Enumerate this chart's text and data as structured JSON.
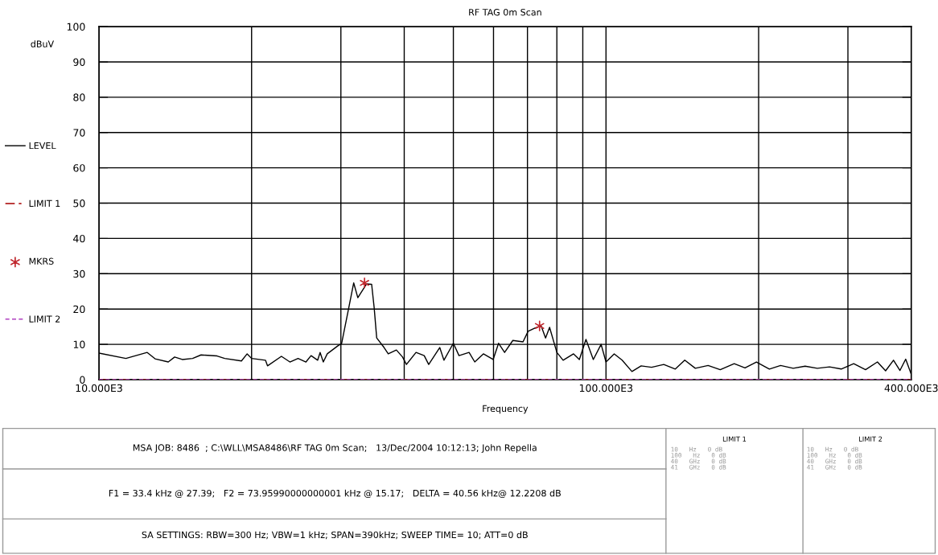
{
  "chart_data": {
    "type": "line",
    "title": "RF TAG 0m Scan",
    "xlabel": "Frequency",
    "ylabel": "dBuV",
    "log": "x",
    "xlim": [
      10000,
      400000
    ],
    "ylim": [
      0,
      100
    ],
    "xticks": [
      {
        "value": 10000,
        "label": "10.000E3"
      },
      {
        "value": 20000,
        "label": null
      },
      {
        "value": 30000,
        "label": null
      },
      {
        "value": 40000,
        "label": null
      },
      {
        "value": 50000,
        "label": null
      },
      {
        "value": 60000,
        "label": null
      },
      {
        "value": 70000,
        "label": null
      },
      {
        "value": 80000,
        "label": null
      },
      {
        "value": 90000,
        "label": null
      },
      {
        "value": 100000,
        "label": "100.000E3"
      },
      {
        "value": 200000,
        "label": null
      },
      {
        "value": 300000,
        "label": null
      },
      {
        "value": 400000,
        "label": "400.000E3"
      }
    ],
    "yticks": [
      0,
      10,
      20,
      30,
      40,
      50,
      60,
      70,
      80,
      90,
      100
    ],
    "grid": true,
    "legend": "left",
    "series": [
      {
        "name": "LEVEL",
        "type": "line",
        "color": "#000000",
        "line_style": "solid",
        "marker": "none",
        "x": [
          10000,
          11300,
          12450,
          12900,
          13700,
          14100,
          14600,
          15300,
          15900,
          17100,
          17700,
          19100,
          19600,
          20000,
          21300,
          21500,
          22900,
          23800,
          24700,
          25600,
          26200,
          27000,
          27300,
          27700,
          28200,
          29600,
          30100,
          31000,
          31800,
          32400,
          33700,
          34500,
          34900,
          35300,
          36500,
          37200,
          38600,
          39700,
          40400,
          42200,
          43800,
          44700,
          47000,
          47900,
          50000,
          51300,
          53700,
          55100,
          57300,
          59900,
          61400,
          63100,
          65500,
          68600,
          70200,
          72400,
          74500,
          76000,
          77400,
          80000,
          82300,
          86300,
          88600,
          91300,
          94400,
          97800,
          100000,
          103800,
          107600,
          112500,
          117300,
          123000,
          130000,
          137000,
          143000,
          150000,
          159000,
          168000,
          179000,
          188000,
          198000,
          210000,
          221000,
          234000,
          247000,
          261000,
          276000,
          291000,
          308000,
          325000,
          343000,
          356000,
          369000,
          380000,
          390000,
          400000
        ],
        "values": [
          7.5,
          6.0,
          7.7,
          5.9,
          5.0,
          6.4,
          5.7,
          6.0,
          7.0,
          6.7,
          6.0,
          5.3,
          7.3,
          6.0,
          5.5,
          3.9,
          6.6,
          5.0,
          6.0,
          5.0,
          6.8,
          5.5,
          7.7,
          5.0,
          7.3,
          9.6,
          10.2,
          19.4,
          27.4,
          23.2,
          27.1,
          27.0,
          20.3,
          11.8,
          9.1,
          7.3,
          8.4,
          6.4,
          4.3,
          7.7,
          6.8,
          4.3,
          9.1,
          5.5,
          10.3,
          6.8,
          7.7,
          5.0,
          7.3,
          5.7,
          10.3,
          7.7,
          11.1,
          10.7,
          13.7,
          14.6,
          15.2,
          11.8,
          14.8,
          7.7,
          5.5,
          7.3,
          5.7,
          11.4,
          5.7,
          10.0,
          5.0,
          7.3,
          5.5,
          2.3,
          3.9,
          3.5,
          4.3,
          3.0,
          5.5,
          3.2,
          4.0,
          2.8,
          4.5,
          3.3,
          5.0,
          3.0,
          4.0,
          3.2,
          3.8,
          3.2,
          3.6,
          3.0,
          4.5,
          2.8,
          5.0,
          2.5,
          5.5,
          2.6,
          5.8,
          1.5
        ]
      },
      {
        "name": "MKRS",
        "type": "scatter",
        "color": "#c0272d",
        "marker": "cross",
        "x": [
          33400,
          73960
        ],
        "values": [
          27.4,
          15.2
        ]
      }
    ],
    "ref_lines": [
      {
        "axis": "y",
        "value": 0,
        "label": "LIMIT 1",
        "color": "#b22222",
        "line_style": "dashed"
      },
      {
        "axis": "y",
        "value": 0,
        "label": "LIMIT 2",
        "color": "#b040c0",
        "line_style": "dotted"
      }
    ],
    "annotations": [
      "MSA JOB: 8486  ; C:\\WLL\\MSA8486\\RF TAG 0m Scan;   13/Dec/2004 10:12:13; John Repella",
      "F1 = 33.4 kHz @ 27.39;   F2 = 73.95990000000001 kHz @ 15.17;   DELTA = 40.56 kHz@ 12.2208 dB",
      "SA SETTINGS: RBW=300 Hz; VBW=1 kHz; SPAN=390kHz; SWEEP TIME= 10; ATT=0 dB",
      "LIMIT 1",
      "10   Hz   0 dB\n100   Hz   0 dB\n40   GHz   0 dB\n41   GHz   0 dB",
      "LIMIT 2",
      "10   Hz   0 dB\n100   Hz   0 dB\n40   GHz   0 dB\n41   GHz   0 dB"
    ]
  }
}
